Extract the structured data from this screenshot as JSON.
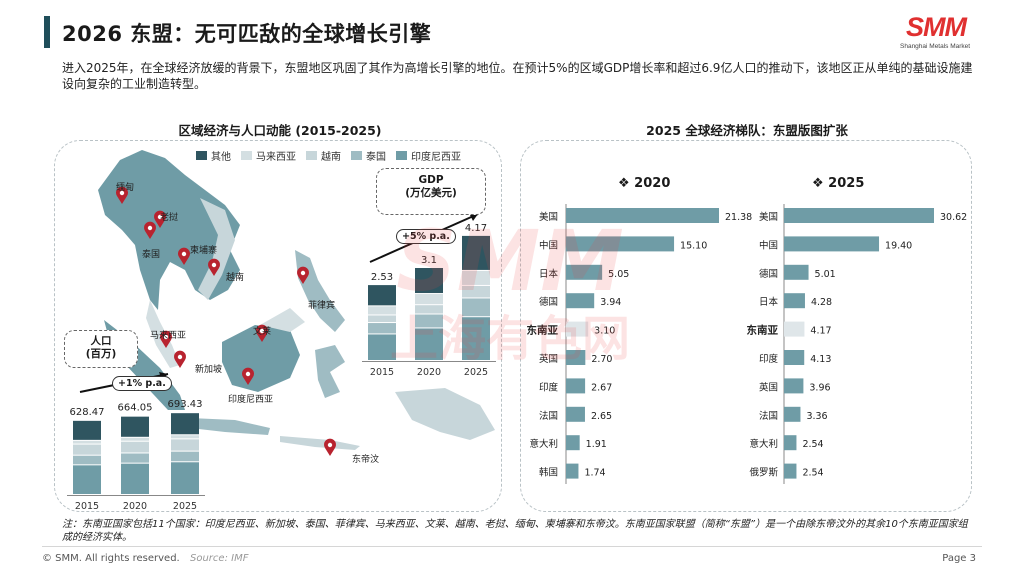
{
  "title": "2026 东盟：无可匹敌的全球增长引擎",
  "logo": {
    "text": "SMM",
    "subtitle": "Shanghai Metals Market"
  },
  "intro": "进入2025年，在全球经济放缓的背景下，东盟地区巩固了其作为高增长引擎的地位。在预计5%的区域GDP增长率和超过6.9亿人口的推动下，该地区正从单纯的基础设施建设向复杂的工业制造转型。",
  "left_title": "区域经济与人口动能 (2015-2025)",
  "right_title": "2025 全球经济梯队：东盟版图扩张",
  "legend": [
    {
      "label": "其他",
      "color": "#2f5560"
    },
    {
      "label": "马来西亚",
      "color": "#d4dfe2"
    },
    {
      "label": "越南",
      "color": "#c7d6da"
    },
    {
      "label": "泰国",
      "color": "#9fbcc3"
    },
    {
      "label": "印度尼西亚",
      "color": "#6f9ca6"
    }
  ],
  "map_labels": [
    "缅甸",
    "老挝",
    "泰国",
    "柬埔寨",
    "越南",
    "菲律宾",
    "马来西亚",
    "新加坡",
    "文莱",
    "印度尼西亚",
    "东帝汶"
  ],
  "population_callout": {
    "line1": "人口",
    "line2": "(百万)",
    "cagr": "+1% p.a."
  },
  "gdp_callout": {
    "line1": "GDP",
    "line2": "(万亿美元)",
    "cagr": "+5% p.a."
  },
  "right_headers": {
    "y2020": "❖ 2020",
    "y2025": "❖ 2025"
  },
  "footnote": "注：东南亚国家包括11个国家：印度尼西亚、新加坡、泰国、菲律宾、马来西亚、文莱、越南、老挝、缅甸、柬埔寨和东帝汶。东南亚国家联盟（简称“东盟”）是一个由除东帝汶外的其余10个东南亚国家组成的经济实体。",
  "footer": {
    "copyright": "© SMM. All rights reserved.",
    "source": "Source: IMF",
    "page": "Page 3"
  },
  "watermark": {
    "line1": "SMM",
    "line2": "上海有色网"
  },
  "chart_data": [
    {
      "type": "bar",
      "title": "人口 (百万)",
      "categories": [
        "2015",
        "2020",
        "2025"
      ],
      "values": [
        628.47,
        664.05,
        693.43
      ],
      "stack_order": [
        "印度尼西亚",
        "泰国",
        "越南",
        "马来西亚",
        "其他"
      ],
      "stack_shares": [
        0.4,
        0.13,
        0.15,
        0.05,
        0.27
      ],
      "annotation": "+1% p.a."
    },
    {
      "type": "bar",
      "title": "GDP (万亿美元)",
      "categories": [
        "2015",
        "2020",
        "2025"
      ],
      "values": [
        2.53,
        3.1,
        4.17
      ],
      "stack_order": [
        "印度尼西亚",
        "泰国",
        "越南",
        "马来西亚",
        "其他"
      ],
      "stack_shares": [
        0.35,
        0.15,
        0.1,
        0.12,
        0.28
      ],
      "annotation": "+5% p.a."
    },
    {
      "type": "bar",
      "orientation": "horizontal",
      "title": "2020",
      "categories": [
        "美国",
        "中国",
        "日本",
        "德国",
        "东南亚",
        "英国",
        "印度",
        "法国",
        "意大利",
        "韩国"
      ],
      "values": [
        21.38,
        15.1,
        5.05,
        3.94,
        3.1,
        2.7,
        2.67,
        2.65,
        1.91,
        1.74
      ],
      "value_labels": [
        "21.38",
        "15.10",
        "5.05",
        "3.94",
        "3.10",
        "2.70",
        "2.67",
        "2.65",
        "1.91",
        "1.74"
      ],
      "highlight": "东南亚"
    },
    {
      "type": "bar",
      "orientation": "horizontal",
      "title": "2025",
      "categories": [
        "美国",
        "中国",
        "德国",
        "日本",
        "东南亚",
        "印度",
        "英国",
        "法国",
        "意大利",
        "俄罗斯"
      ],
      "values": [
        30.62,
        19.4,
        5.01,
        4.28,
        4.17,
        4.13,
        3.96,
        3.36,
        2.54,
        2.54
      ],
      "value_labels": [
        "30.62",
        "19.40",
        "5.01",
        "4.28",
        "4.17",
        "4.13",
        "3.96",
        "3.36",
        "2.54",
        "2.54"
      ],
      "highlight": "东南亚"
    }
  ]
}
